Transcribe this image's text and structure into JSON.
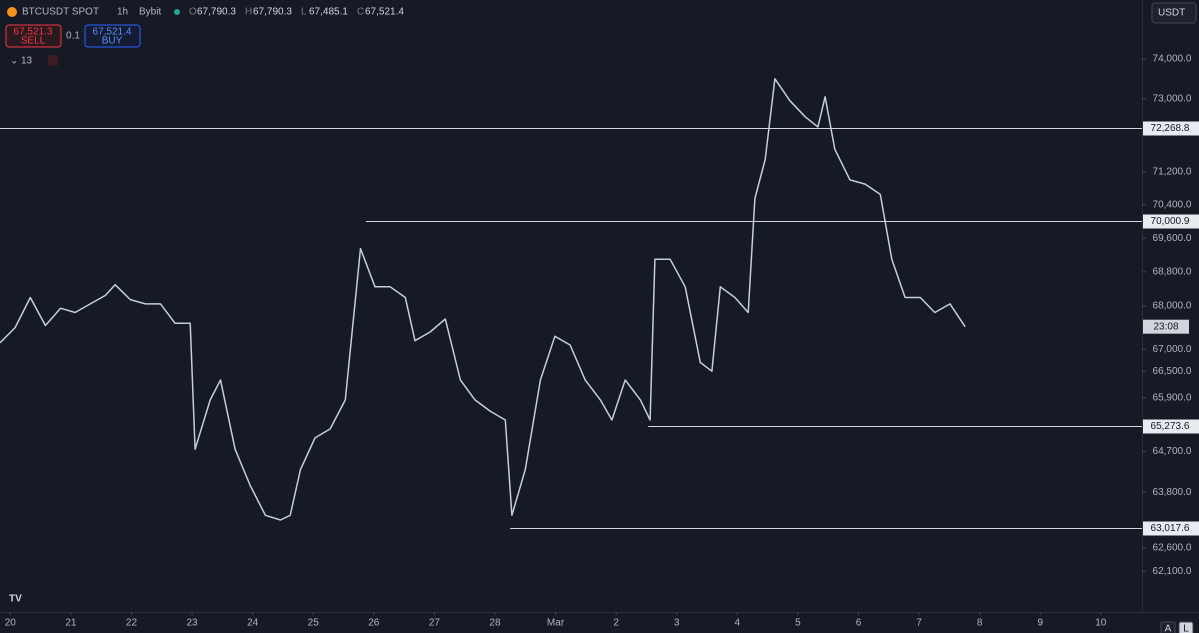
{
  "header": {
    "symbol": "BTCUSDT SPOT",
    "interval": "1h",
    "exchange": "Bybit",
    "ohlc": [
      {
        "key": "O",
        "value": "67,790.3"
      },
      {
        "key": "H",
        "value": "67,790.3"
      },
      {
        "key": "L",
        "value": "67,485.1"
      },
      {
        "key": "C",
        "value": "67,521.4"
      }
    ]
  },
  "trade": {
    "sell_price": "67,521.3",
    "sell": "SELL",
    "qty": "0.1",
    "buy_price": "67,521.4",
    "buy": "BUY",
    "indicators": "13"
  },
  "currency": "USDT",
  "countdown": "23:08",
  "buttons": [
    "A",
    "L"
  ],
  "chart_data": {
    "type": "line",
    "log_scale": true,
    "grid": false,
    "color": "#c3cfd9",
    "x": [
      -0.17,
      0.08,
      0.33,
      0.58,
      0.83,
      1.07,
      1.32,
      1.57,
      1.73,
      1.98,
      2.23,
      2.48,
      2.72,
      2.97,
      3.05,
      3.3,
      3.47,
      3.71,
      3.96,
      4.21,
      4.46,
      4.62,
      4.79,
      5.03,
      5.28,
      5.53,
      5.78,
      6.02,
      6.27,
      6.52,
      6.68,
      6.93,
      7.18,
      7.43,
      7.67,
      7.92,
      8.17,
      8.28,
      8.5,
      8.75,
      8.99,
      9.24,
      9.49,
      9.74,
      9.93,
      10.15,
      10.4,
      10.56,
      10.64,
      10.89,
      11.14,
      11.39,
      11.58,
      11.72,
      11.96,
      12.18,
      12.29,
      12.46,
      12.62,
      12.87,
      13.12,
      13.33,
      13.45,
      13.61,
      13.86,
      14.11,
      14.36,
      14.55,
      14.77,
      15.02,
      15.26,
      15.51,
      15.76
    ],
    "series": [
      {
        "name": "BTCUSDT",
        "values": [
          67150,
          67500,
          68200,
          67550,
          67950,
          67850,
          68050,
          68250,
          68500,
          68150,
          68050,
          68050,
          67600,
          67600,
          64750,
          65850,
          66300,
          64750,
          63950,
          63300,
          63200,
          63300,
          64300,
          65000,
          65200,
          65850,
          69350,
          68450,
          68450,
          68200,
          67200,
          67400,
          67700,
          66300,
          65850,
          65600,
          65400,
          63300,
          64300,
          66300,
          67300,
          67100,
          66300,
          65850,
          65400,
          66300,
          65850,
          65400,
          69100,
          69100,
          68450,
          66700,
          66500,
          68450,
          68200,
          67850,
          70550,
          71500,
          73500,
          72950,
          72550,
          72300,
          73050,
          71750,
          71000,
          70900,
          70650,
          69100,
          68200,
          68200,
          67850,
          68050,
          67521.4
        ]
      }
    ],
    "xlim": [
      -0.17,
      18.68
    ],
    "xticks": [
      {
        "value": 0,
        "label": "20"
      },
      {
        "value": 1,
        "label": "21"
      },
      {
        "value": 2,
        "label": "22"
      },
      {
        "value": 3,
        "label": "23"
      },
      {
        "value": 4,
        "label": "24"
      },
      {
        "value": 5,
        "label": "25"
      },
      {
        "value": 6,
        "label": "26"
      },
      {
        "value": 7,
        "label": "27"
      },
      {
        "value": 8,
        "label": "28"
      },
      {
        "value": 9,
        "label": "Mar"
      },
      {
        "value": 10,
        "label": "2"
      },
      {
        "value": 11,
        "label": "3"
      },
      {
        "value": 12,
        "label": "4"
      },
      {
        "value": 13,
        "label": "5"
      },
      {
        "value": 14,
        "label": "6"
      },
      {
        "value": 15,
        "label": "7"
      },
      {
        "value": 16,
        "label": "8"
      },
      {
        "value": 17,
        "label": "9"
      },
      {
        "value": 18,
        "label": "10"
      }
    ],
    "ylim": [
      61240,
      75510
    ],
    "yticks": [
      {
        "value": 74000,
        "label": "74,000.0"
      },
      {
        "value": 73000,
        "label": "73,000.0"
      },
      {
        "value": 71200,
        "label": "71,200.0"
      },
      {
        "value": 70400,
        "label": "70,400.0"
      },
      {
        "value": 69600,
        "label": "69,600.0"
      },
      {
        "value": 68800,
        "label": "68,800.0"
      },
      {
        "value": 68000,
        "label": "68,000.0"
      },
      {
        "value": 67000,
        "label": "67,000.0"
      },
      {
        "value": 66500,
        "label": "66,500.0"
      },
      {
        "value": 65900,
        "label": "65,900.0"
      },
      {
        "value": 64700,
        "label": "64,700.0"
      },
      {
        "value": 63800,
        "label": "63,800.0"
      },
      {
        "value": 62600,
        "label": "62,600.0"
      },
      {
        "value": 62100,
        "label": "62,100.0"
      }
    ],
    "levels": [
      {
        "value": 72268.8,
        "label": "72,268.8",
        "start": -0.17
      },
      {
        "value": 70000.9,
        "label": "70,000.9",
        "start": 5.87
      },
      {
        "value": 65273.6,
        "label": "65,273.6",
        "start": 10.53
      },
      {
        "value": 63017.6,
        "label": "63,017.6",
        "start": 8.25
      }
    ]
  }
}
